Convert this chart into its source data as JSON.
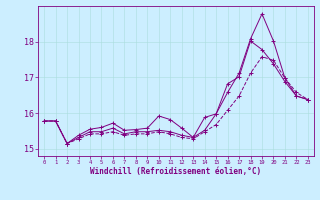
{
  "title": "",
  "xlabel": "Windchill (Refroidissement éolien,°C)",
  "bg_color": "#cceeff",
  "line_color": "#800080",
  "grid_color": "#aadddd",
  "xlim": [
    -0.5,
    23.5
  ],
  "ylim": [
    14.8,
    19.0
  ],
  "yticks": [
    15,
    16,
    17,
    18
  ],
  "xticks": [
    0,
    1,
    2,
    3,
    4,
    5,
    6,
    7,
    8,
    9,
    10,
    11,
    12,
    13,
    14,
    15,
    16,
    17,
    18,
    19,
    20,
    21,
    22,
    23
  ],
  "lines": [
    {
      "x": [
        0,
        1,
        2,
        3,
        4,
        5,
        6,
        7,
        8,
        9,
        10,
        11,
        12,
        13,
        14,
        15,
        16,
        17,
        18,
        19,
        20,
        21,
        22,
        23
      ],
      "y": [
        15.78,
        15.78,
        15.15,
        15.38,
        15.55,
        15.6,
        15.72,
        15.52,
        15.54,
        15.58,
        15.92,
        15.82,
        15.58,
        15.32,
        15.88,
        15.98,
        16.82,
        17.02,
        18.02,
        17.78,
        17.38,
        16.88,
        16.48,
        16.38
      ],
      "style": "-",
      "marker": "+"
    },
    {
      "x": [
        0,
        1,
        2,
        3,
        4,
        5,
        6,
        7,
        8,
        9,
        10,
        11,
        12,
        13,
        14,
        15,
        16,
        17,
        18,
        19,
        20,
        21,
        22,
        23
      ],
      "y": [
        15.78,
        15.78,
        15.15,
        15.32,
        15.48,
        15.48,
        15.58,
        15.42,
        15.48,
        15.48,
        15.52,
        15.48,
        15.38,
        15.32,
        15.52,
        15.98,
        16.58,
        17.12,
        18.08,
        18.78,
        18.02,
        16.98,
        16.48,
        16.38
      ],
      "style": "-",
      "marker": "+"
    },
    {
      "x": [
        0,
        1,
        2,
        3,
        4,
        5,
        6,
        7,
        8,
        9,
        10,
        11,
        12,
        13,
        14,
        15,
        16,
        17,
        18,
        19,
        20,
        21,
        22,
        23
      ],
      "y": [
        15.78,
        15.78,
        15.15,
        15.28,
        15.42,
        15.42,
        15.48,
        15.38,
        15.42,
        15.42,
        15.48,
        15.42,
        15.32,
        15.28,
        15.48,
        15.68,
        16.08,
        16.48,
        17.12,
        17.58,
        17.48,
        16.98,
        16.58,
        16.38
      ],
      "style": "--",
      "marker": "+"
    }
  ]
}
